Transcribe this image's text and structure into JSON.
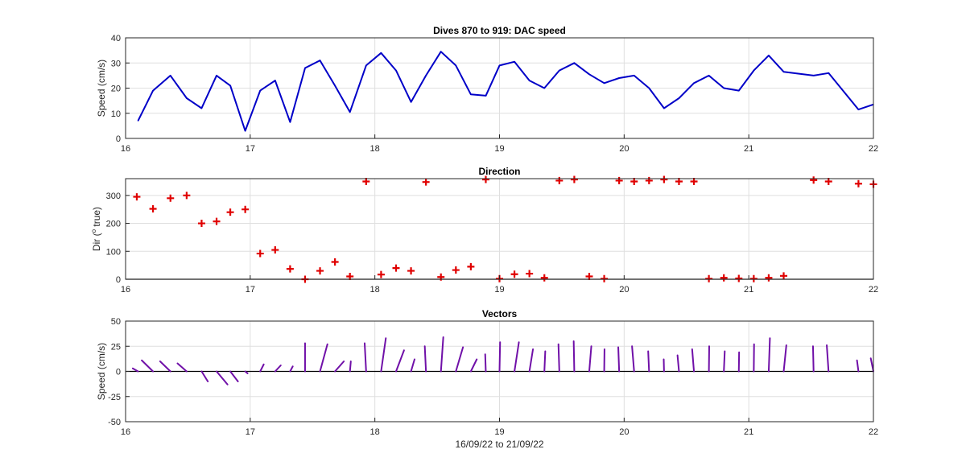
{
  "chart_data": [
    {
      "type": "line",
      "title": "Dives 870 to 919: DAC speed",
      "xlabel": "",
      "ylabel": "Speed (cm/s)",
      "xlim": [
        16,
        22
      ],
      "ylim": [
        0,
        40
      ],
      "xticks": [
        16,
        17,
        18,
        19,
        20,
        21,
        22
      ],
      "yticks": [
        0,
        10,
        20,
        30,
        40
      ],
      "grid": true,
      "color": "#0000c8",
      "x": [
        16.1,
        16.22,
        16.36,
        16.49,
        16.61,
        16.73,
        16.84,
        16.96,
        17.08,
        17.2,
        17.32,
        17.44,
        17.56,
        17.68,
        17.8,
        17.93,
        18.05,
        18.17,
        18.29,
        18.41,
        18.53,
        18.65,
        18.77,
        18.89,
        19.0,
        19.12,
        19.24,
        19.36,
        19.48,
        19.6,
        19.72,
        19.84,
        19.96,
        20.08,
        20.2,
        20.32,
        20.44,
        20.56,
        20.68,
        20.8,
        20.92,
        21.04,
        21.16,
        21.28,
        21.52,
        21.64,
        21.88,
        22.0
      ],
      "y": [
        7,
        19,
        25,
        16,
        12,
        25,
        21,
        3,
        19,
        23,
        6.5,
        28,
        31,
        21,
        10.5,
        29,
        34,
        27,
        14.5,
        25,
        34.5,
        29,
        17.5,
        17,
        29,
        30.5,
        23,
        20,
        27,
        30,
        25.5,
        22,
        24,
        25,
        20,
        12,
        16,
        22,
        25,
        20,
        19,
        27,
        33,
        26.5,
        25,
        26,
        11.5,
        13.5
      ]
    },
    {
      "type": "scatter",
      "title": "Direction",
      "xlabel": "",
      "ylabel": "Dir (o true)",
      "ylabel_parts": [
        "Dir (",
        "o",
        " true)"
      ],
      "xlim": [
        16,
        22
      ],
      "ylim": [
        0,
        360
      ],
      "xticks": [
        16,
        17,
        18,
        19,
        20,
        21,
        22
      ],
      "yticks": [
        0,
        100,
        200,
        300
      ],
      "grid": true,
      "marker": "+",
      "color": "#e00000",
      "x": [
        16.09,
        16.22,
        16.36,
        16.49,
        16.61,
        16.73,
        16.84,
        16.96,
        17.08,
        17.2,
        17.32,
        17.44,
        17.56,
        17.68,
        17.8,
        17.93,
        18.05,
        18.17,
        18.29,
        18.41,
        18.53,
        18.65,
        18.77,
        18.89,
        19.0,
        19.12,
        19.24,
        19.36,
        19.48,
        19.6,
        19.72,
        19.84,
        19.96,
        20.08,
        20.2,
        20.32,
        20.44,
        20.56,
        20.68,
        20.8,
        20.92,
        21.04,
        21.16,
        21.28,
        21.52,
        21.64,
        21.88,
        22.0
      ],
      "y": [
        295,
        252,
        290,
        300,
        200,
        207,
        240,
        250,
        92,
        105,
        37,
        0,
        30,
        62,
        10,
        350,
        17,
        40,
        30,
        348,
        8,
        33,
        45,
        357,
        2,
        18,
        20,
        5,
        353,
        357,
        10,
        2,
        353,
        350,
        353,
        357,
        350,
        350,
        2,
        5,
        3,
        2,
        5,
        12,
        355,
        350,
        342,
        340
      ]
    },
    {
      "type": "vector",
      "title": "Vectors",
      "xlabel": "16/09/22 to 21/09/22",
      "ylabel": "Speed (cm/s)",
      "xlim": [
        16,
        22
      ],
      "ylim": [
        -50,
        50
      ],
      "xticks": [
        16,
        17,
        18,
        19,
        20,
        21,
        22
      ],
      "yticks": [
        -50,
        -25,
        0,
        25,
        50
      ],
      "grid": true,
      "color": "#7010a8",
      "x": [
        16.1,
        16.22,
        16.36,
        16.49,
        16.61,
        16.73,
        16.84,
        16.96,
        17.08,
        17.2,
        17.32,
        17.44,
        17.56,
        17.68,
        17.8,
        17.93,
        18.05,
        18.17,
        18.29,
        18.41,
        18.53,
        18.65,
        18.77,
        18.89,
        19.0,
        19.12,
        19.24,
        19.36,
        19.48,
        19.6,
        19.72,
        19.84,
        19.96,
        20.08,
        20.2,
        20.32,
        20.44,
        20.56,
        20.68,
        20.8,
        20.92,
        21.04,
        21.16,
        21.28,
        21.52,
        21.64,
        21.88,
        22.0
      ],
      "u": [
        -1.8,
        -3.8,
        -3.5,
        -3.1,
        2.1,
        3.7,
        2.6,
        0.8,
        1.2,
        1.9,
        0.9,
        0,
        2.5,
        3.0,
        0.3,
        -0.5,
        1.6,
        2.7,
        1.2,
        -0.4,
        0.8,
        2.4,
        2.0,
        -0.2,
        0.2,
        1.5,
        1.2,
        0.3,
        -0.3,
        -0.2,
        0.7,
        0.1,
        -0.3,
        -0.7,
        -0.3,
        -0.1,
        -0.5,
        -0.6,
        0.1,
        0.3,
        0.1,
        0.1,
        0.4,
        0.9,
        -0.2,
        -0.6,
        -0.5,
        -0.9
      ],
      "v": [
        3,
        11,
        10,
        8,
        -10,
        -13,
        -10,
        -2,
        7,
        6,
        5,
        28,
        27,
        10,
        10,
        28,
        33,
        21,
        12,
        25,
        34,
        24,
        12,
        17,
        29,
        29,
        22,
        20,
        27,
        30,
        25,
        22,
        24,
        25,
        20,
        12,
        16,
        22,
        25,
        20,
        19,
        27,
        33,
        26,
        25,
        26,
        11,
        13
      ]
    }
  ]
}
